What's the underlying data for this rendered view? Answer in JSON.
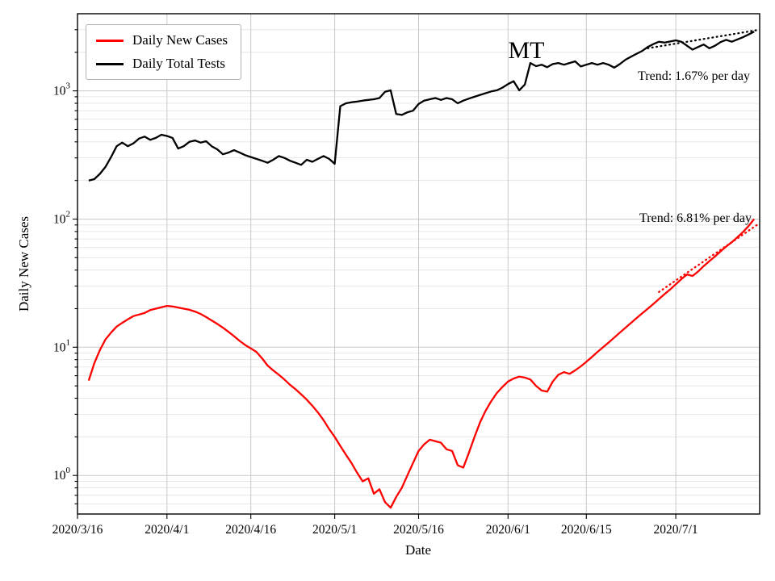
{
  "figure": {
    "state_label": "MT",
    "annotations": [
      {
        "text": "Trend: 1.67% per day",
        "series": "Daily Total Tests"
      },
      {
        "text": "Trend: 6.81% per day",
        "series": "Daily New Cases"
      }
    ]
  },
  "chart_data": {
    "type": "line",
    "title": "",
    "xlabel": "Date",
    "ylabel": "Daily New Cases",
    "yscale": "log",
    "grid": true,
    "x_unit": "days since 2020/3/16",
    "xlim": [
      0,
      122
    ],
    "ylim": [
      0.5,
      4000
    ],
    "xticks": [
      {
        "day": 0,
        "label": "2020/3/16"
      },
      {
        "day": 16,
        "label": "2020/4/1"
      },
      {
        "day": 31,
        "label": "2020/4/16"
      },
      {
        "day": 46,
        "label": "2020/5/1"
      },
      {
        "day": 61,
        "label": "2020/5/16"
      },
      {
        "day": 77,
        "label": "2020/6/1"
      },
      {
        "day": 91,
        "label": "2020/6/15"
      },
      {
        "day": 107,
        "label": "2020/7/1"
      }
    ],
    "yticks": [
      0,
      1,
      2,
      3
    ],
    "legend": {
      "position": "upper left",
      "entries": [
        {
          "label": "Daily New Cases",
          "color": "#ff0000"
        },
        {
          "label": "Daily Total Tests",
          "color": "#000000"
        }
      ]
    },
    "series": [
      {
        "name": "Daily New Cases",
        "color": "#ff0000",
        "style": "solid",
        "start_day": 2,
        "values": [
          5.5,
          7.5,
          9.5,
          11.5,
          13,
          14.5,
          15.5,
          16.5,
          17.5,
          18,
          18.5,
          19.5,
          20,
          20.5,
          21,
          20.8,
          20.4,
          20,
          19.6,
          19,
          18.2,
          17.2,
          16.2,
          15.2,
          14.2,
          13.2,
          12.2,
          11.2,
          10.4,
          9.8,
          9.2,
          8.2,
          7.2,
          6.6,
          6.1,
          5.6,
          5.1,
          4.7,
          4.3,
          3.9,
          3.5,
          3.1,
          2.7,
          2.3,
          2.0,
          1.7,
          1.45,
          1.25,
          1.05,
          0.9,
          0.95,
          0.72,
          0.78,
          0.62,
          0.56,
          0.68,
          0.8,
          1.0,
          1.25,
          1.55,
          1.75,
          1.9,
          1.85,
          1.8,
          1.6,
          1.55,
          1.2,
          1.15,
          1.5,
          2.0,
          2.6,
          3.2,
          3.8,
          4.4,
          4.9,
          5.4,
          5.7,
          5.9,
          5.8,
          5.6,
          5.0,
          4.6,
          4.5,
          5.4,
          6.1,
          6.4,
          6.2,
          6.6,
          7.1,
          7.7,
          8.4,
          9.2,
          10,
          10.9,
          11.9,
          13,
          14.2,
          15.5,
          16.9,
          18.4,
          20,
          21.8,
          23.8,
          26,
          28.3,
          31,
          34,
          37,
          36,
          39,
          43,
          47,
          51,
          56,
          61,
          66,
          72,
          79,
          88,
          100
        ]
      },
      {
        "name": "Daily Total Tests",
        "color": "#000000",
        "style": "solid",
        "start_day": 2,
        "values": [
          200,
          205,
          225,
          255,
          305,
          370,
          395,
          370,
          390,
          425,
          440,
          415,
          430,
          455,
          445,
          430,
          355,
          370,
          400,
          410,
          395,
          405,
          370,
          350,
          320,
          330,
          345,
          330,
          315,
          305,
          295,
          285,
          275,
          290,
          310,
          300,
          285,
          275,
          265,
          290,
          280,
          295,
          310,
          295,
          270,
          760,
          800,
          815,
          825,
          840,
          850,
          860,
          880,
          985,
          1010,
          660,
          650,
          680,
          700,
          790,
          840,
          860,
          880,
          850,
          880,
          860,
          800,
          840,
          870,
          900,
          930,
          960,
          990,
          1010,
          1060,
          1130,
          1190,
          1010,
          1120,
          1650,
          1560,
          1600,
          1530,
          1620,
          1650,
          1600,
          1650,
          1700,
          1550,
          1600,
          1650,
          1600,
          1650,
          1600,
          1520,
          1620,
          1750,
          1850,
          1950,
          2050,
          2200,
          2320,
          2420,
          2380,
          2430,
          2480,
          2420,
          2250,
          2100,
          2200,
          2300,
          2150,
          2250,
          2400,
          2500,
          2420,
          2520,
          2620,
          2750,
          2900
        ]
      },
      {
        "name": "Daily New Cases trend (6.81% per day)",
        "color": "#ff0000",
        "style": "dotted",
        "points": [
          [
            104,
            27
          ],
          [
            122,
            93
          ]
        ]
      },
      {
        "name": "Daily Total Tests trend (1.67% per day)",
        "color": "#000000",
        "style": "dotted",
        "points": [
          [
            102,
            2150
          ],
          [
            122,
            3000
          ]
        ]
      }
    ]
  }
}
